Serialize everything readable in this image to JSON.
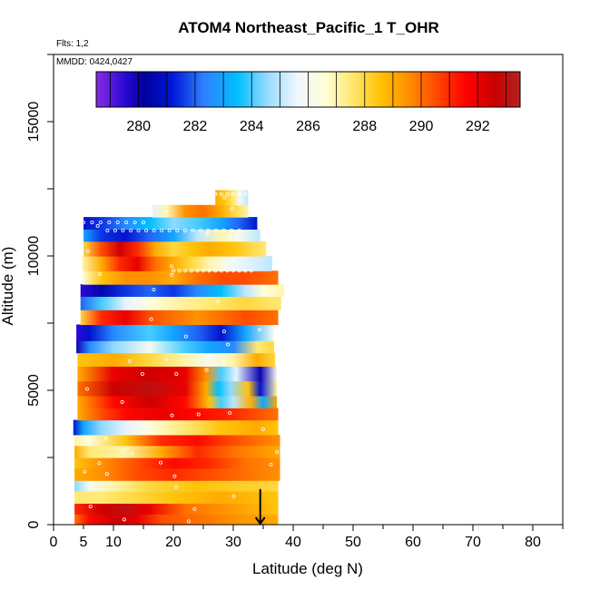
{
  "chart_data": {
    "type": "heatmap",
    "title": "ATOM4 Northeast_Pacific_1 T_OHR",
    "flights_label": "Flts: 1,2",
    "dates_label": "MMDD: 0424,0427",
    "xlabel": "Latitude (deg N)",
    "ylabel": "Altitude (m)",
    "xlim": [
      0,
      85
    ],
    "ylim": [
      0,
      17500
    ],
    "x_ticks": [
      0,
      5,
      10,
      20,
      30,
      40,
      50,
      60,
      70,
      80
    ],
    "x_tick_labels": [
      "0",
      "5",
      "10",
      "20",
      "30",
      "40",
      "50",
      "60",
      "70",
      "80"
    ],
    "y_ticks": [
      0,
      5000,
      10000,
      15000
    ],
    "y_tick_labels": [
      "0",
      "5000",
      "10000",
      "15000"
    ],
    "grid": false,
    "colorbar": {
      "min": 278.5,
      "max": 293.5,
      "ticks": [
        280,
        282,
        284,
        286,
        288,
        290,
        292
      ],
      "tick_labels": [
        "280",
        "282",
        "284",
        "286",
        "288",
        "290",
        "292"
      ],
      "placement": "top"
    },
    "marker": {
      "shape": "arrow-down",
      "x": 34.5,
      "y_top": 650,
      "y_bottom": 0
    },
    "bands": [
      {
        "y0": 0,
        "y1": 400,
        "x0": 3.5,
        "x1": 37.5,
        "stops": [
          [
            3.5,
            290
          ],
          [
            6,
            291.5
          ],
          [
            10,
            292.5
          ],
          [
            14,
            292
          ],
          [
            18,
            290.5
          ],
          [
            24,
            290
          ],
          [
            30,
            289.5
          ],
          [
            37.5,
            289
          ]
        ]
      },
      {
        "y0": 400,
        "y1": 800,
        "x0": 3.5,
        "x1": 37.5,
        "stops": [
          [
            3.5,
            291
          ],
          [
            8,
            292.5
          ],
          [
            12,
            293
          ],
          [
            16,
            292
          ],
          [
            22,
            290
          ],
          [
            28,
            289.5
          ],
          [
            37.5,
            288.5
          ]
        ]
      },
      {
        "y0": 800,
        "y1": 1250,
        "x0": 3.5,
        "x1": 37.5,
        "stops": [
          [
            3.5,
            287.5
          ],
          [
            8,
            287.5
          ],
          [
            14,
            288
          ],
          [
            20,
            288.5
          ],
          [
            28,
            289
          ],
          [
            37.5,
            288.5
          ]
        ]
      },
      {
        "y0": 1250,
        "y1": 1650,
        "x0": 3.5,
        "x1": 37.5,
        "stops": [
          [
            3.5,
            284.5
          ],
          [
            6,
            286
          ],
          [
            10,
            287
          ],
          [
            16,
            288
          ],
          [
            24,
            288.5
          ],
          [
            37.5,
            288
          ]
        ]
      },
      {
        "y0": 1650,
        "y1": 2100,
        "x0": 3.5,
        "x1": 37.8,
        "stops": [
          [
            3.5,
            289
          ],
          [
            8,
            289.5
          ],
          [
            14,
            290.5
          ],
          [
            20,
            291
          ],
          [
            26,
            290.5
          ],
          [
            32,
            290
          ],
          [
            37.8,
            289.5
          ]
        ]
      },
      {
        "y0": 2100,
        "y1": 2500,
        "x0": 3.5,
        "x1": 37.8,
        "stops": [
          [
            3.5,
            288.5
          ],
          [
            8,
            289.5
          ],
          [
            14,
            290.5
          ],
          [
            20,
            291.5
          ],
          [
            26,
            291
          ],
          [
            32,
            290
          ],
          [
            37.8,
            289.5
          ]
        ]
      },
      {
        "y0": 2500,
        "y1": 2950,
        "x0": 3.5,
        "x1": 37.8,
        "stops": [
          [
            3.5,
            289
          ],
          [
            6,
            287.5
          ],
          [
            12,
            287
          ],
          [
            18,
            289
          ],
          [
            24,
            291
          ],
          [
            30,
            290
          ],
          [
            37.8,
            289
          ]
        ]
      },
      {
        "y0": 2950,
        "y1": 3350,
        "x0": 3.5,
        "x1": 37.8,
        "stops": [
          [
            3.5,
            287
          ],
          [
            6,
            286.5
          ],
          [
            12,
            288.5
          ],
          [
            18,
            291
          ],
          [
            24,
            291.5
          ],
          [
            30,
            290.5
          ],
          [
            37.8,
            289.5
          ]
        ]
      },
      {
        "y0": 3350,
        "y1": 3900,
        "x0": 3.3,
        "x1": 37.5,
        "stops": [
          [
            3.3,
            281
          ],
          [
            5,
            283
          ],
          [
            8,
            284.5
          ],
          [
            12,
            285.5
          ],
          [
            16,
            286.5
          ],
          [
            22,
            287.5
          ],
          [
            28,
            288.5
          ],
          [
            34,
            289
          ],
          [
            37.5,
            288.5
          ]
        ]
      },
      {
        "y0": 3900,
        "y1": 4350,
        "x0": 4,
        "x1": 37.5,
        "stops": [
          [
            4,
            289
          ],
          [
            8,
            290.5
          ],
          [
            12,
            291.5
          ],
          [
            18,
            292
          ],
          [
            24,
            291.5
          ],
          [
            30,
            291
          ],
          [
            37.5,
            290
          ]
        ]
      },
      {
        "y0": 4350,
        "y1": 4800,
        "x0": 4,
        "x1": 37.3,
        "stops": [
          [
            4,
            289
          ],
          [
            10,
            291.5
          ],
          [
            16,
            292.5
          ],
          [
            22,
            291.5
          ],
          [
            26,
            288.5
          ],
          [
            28,
            284
          ],
          [
            30,
            285
          ],
          [
            33,
            289
          ],
          [
            35,
            283
          ],
          [
            37.3,
            289
          ]
        ]
      },
      {
        "y0": 4800,
        "y1": 5350,
        "x0": 4,
        "x1": 37.3,
        "stops": [
          [
            4,
            290
          ],
          [
            10,
            292.5
          ],
          [
            16,
            293
          ],
          [
            22,
            292
          ],
          [
            25.5,
            289
          ],
          [
            27.5,
            283.5
          ],
          [
            29.5,
            284.5
          ],
          [
            32.5,
            288.5
          ],
          [
            34.5,
            281
          ],
          [
            37.3,
            287
          ]
        ]
      },
      {
        "y0": 5350,
        "y1": 5900,
        "x0": 4,
        "x1": 37.3,
        "stops": [
          [
            4,
            289
          ],
          [
            10,
            292
          ],
          [
            16,
            292.5
          ],
          [
            22,
            292
          ],
          [
            25.5,
            289.5
          ],
          [
            28,
            284
          ],
          [
            30.5,
            285.5
          ],
          [
            34.5,
            280
          ],
          [
            37.3,
            286
          ]
        ]
      },
      {
        "y0": 5900,
        "y1": 6400,
        "x0": 4,
        "x1": 37,
        "stops": [
          [
            4,
            288.5
          ],
          [
            10,
            289
          ],
          [
            16,
            288
          ],
          [
            22,
            287
          ],
          [
            26,
            286
          ],
          [
            30,
            287
          ],
          [
            34,
            289
          ],
          [
            37,
            288
          ]
        ]
      },
      {
        "y0": 6400,
        "y1": 6850,
        "x0": 3.8,
        "x1": 36.8,
        "stops": [
          [
            3.8,
            280
          ],
          [
            6,
            282.5
          ],
          [
            10,
            284.5
          ],
          [
            16,
            286
          ],
          [
            22,
            284
          ],
          [
            26,
            283
          ],
          [
            30,
            282.5
          ],
          [
            34,
            287.5
          ],
          [
            36.8,
            288
          ]
        ]
      },
      {
        "y0": 6850,
        "y1": 7450,
        "x0": 3.8,
        "x1": 36.8,
        "stops": [
          [
            3.8,
            279.5
          ],
          [
            6,
            281
          ],
          [
            10,
            282.5
          ],
          [
            16,
            284
          ],
          [
            20,
            283
          ],
          [
            24,
            282
          ],
          [
            28,
            281
          ],
          [
            32,
            283
          ],
          [
            36.8,
            286
          ]
        ]
      },
      {
        "y0": 7450,
        "y1": 8000,
        "x0": 4.5,
        "x1": 37.5,
        "stops": [
          [
            4.5,
            288
          ],
          [
            8,
            291
          ],
          [
            12,
            292
          ],
          [
            16,
            290.5
          ],
          [
            20,
            290
          ],
          [
            24,
            289.5
          ],
          [
            28,
            290
          ],
          [
            32,
            290.5
          ],
          [
            37.5,
            290
          ]
        ]
      },
      {
        "y0": 8000,
        "y1": 8500,
        "x0": 4.5,
        "x1": 38,
        "stops": [
          [
            4.5,
            282
          ],
          [
            8,
            284
          ],
          [
            12,
            285.5
          ],
          [
            16,
            286.5
          ],
          [
            20,
            287
          ],
          [
            26,
            287.5
          ],
          [
            32,
            288
          ],
          [
            38,
            287.5
          ]
        ]
      },
      {
        "y0": 8500,
        "y1": 8950,
        "x0": 4.5,
        "x1": 38.5,
        "stops": [
          [
            4.5,
            279.5
          ],
          [
            8,
            280.5
          ],
          [
            12,
            281.5
          ],
          [
            16,
            282
          ],
          [
            20,
            281.5
          ],
          [
            24,
            282.5
          ],
          [
            28,
            283.5
          ],
          [
            32,
            285
          ],
          [
            35,
            286.5
          ],
          [
            38.5,
            287
          ]
        ]
      },
      {
        "y0": 8950,
        "y1": 9450,
        "x0": 4.8,
        "x1": 37.5,
        "stops": [
          [
            4.8,
            286.5
          ],
          [
            8,
            288.5
          ],
          [
            12,
            289.5
          ],
          [
            16,
            289.5
          ],
          [
            20,
            289
          ],
          [
            24,
            290
          ],
          [
            28,
            290.5
          ],
          [
            32,
            290.5
          ],
          [
            37.5,
            290
          ]
        ]
      },
      {
        "y0": 9450,
        "y1": 10000,
        "x0": 4.8,
        "x1": 36.5,
        "stops": [
          [
            4.8,
            287
          ],
          [
            8,
            289
          ],
          [
            11,
            291
          ],
          [
            14,
            292
          ],
          [
            17,
            290
          ],
          [
            20,
            289
          ],
          [
            23,
            288
          ],
          [
            26,
            287
          ],
          [
            29,
            286
          ],
          [
            32,
            285.5
          ],
          [
            36.5,
            285
          ]
        ]
      },
      {
        "y0": 10000,
        "y1": 10550,
        "x0": 5,
        "x1": 35.5,
        "stops": [
          [
            5,
            288
          ],
          [
            8,
            290.5
          ],
          [
            11,
            292.5
          ],
          [
            14,
            291
          ],
          [
            17,
            289
          ],
          [
            20,
            288
          ],
          [
            23,
            288.5
          ],
          [
            26,
            289
          ],
          [
            30,
            288.5
          ],
          [
            35.5,
            287.5
          ]
        ]
      },
      {
        "y0": 10550,
        "y1": 11000,
        "x0": 5,
        "x1": 34.5,
        "stops": [
          [
            5,
            283
          ],
          [
            8,
            281.5
          ],
          [
            12,
            281
          ],
          [
            16,
            282
          ],
          [
            20,
            283
          ],
          [
            24,
            285
          ],
          [
            28,
            287
          ],
          [
            31,
            286
          ],
          [
            34.5,
            285
          ]
        ]
      },
      {
        "y0": 11000,
        "y1": 11450,
        "x0": 5,
        "x1": 34,
        "stops": [
          [
            5,
            281
          ],
          [
            8,
            281.5
          ],
          [
            12,
            282.5
          ],
          [
            16,
            283.5
          ],
          [
            20,
            284.5
          ],
          [
            24,
            284
          ],
          [
            28,
            283
          ],
          [
            31,
            282
          ],
          [
            34,
            281
          ]
        ]
      },
      {
        "y0": 11450,
        "y1": 11900,
        "x0": 16.5,
        "x1": 32.5,
        "stops": [
          [
            16.5,
            285.5
          ],
          [
            19,
            287
          ],
          [
            22,
            289.5
          ],
          [
            25,
            290
          ],
          [
            28,
            289
          ],
          [
            30,
            288
          ],
          [
            32.5,
            287
          ]
        ]
      },
      {
        "y0": 11900,
        "y1": 12450,
        "x0": 27,
        "x1": 32.5,
        "stops": [
          [
            27,
            289
          ],
          [
            28.5,
            288.5
          ],
          [
            30,
            287.5
          ],
          [
            31,
            286
          ],
          [
            32.5,
            285
          ]
        ]
      }
    ]
  }
}
